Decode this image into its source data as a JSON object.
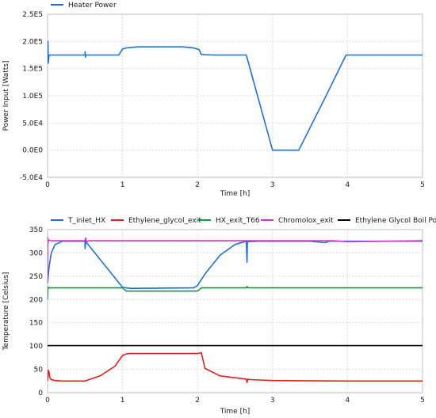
{
  "chart_data": [
    {
      "type": "line",
      "title": "",
      "xlabel": "Time [h]",
      "ylabel": "Power Input [Watts]",
      "xlim": [
        0,
        5
      ],
      "ylim": [
        -50000,
        250000
      ],
      "x_ticks": [
        0,
        1,
        2,
        3,
        4,
        5
      ],
      "x_tick_labels": [
        "0",
        "1",
        "2",
        "3",
        "4",
        "5"
      ],
      "y_ticks": [
        -50000,
        0,
        50000,
        100000,
        150000,
        200000,
        250000
      ],
      "y_tick_labels": [
        "-5.0E4",
        "0.0E0",
        "5.0E4",
        "1.0E5",
        "1.5E5",
        "2.0E5",
        "2.5E5"
      ],
      "grid": true,
      "legend_position": "top-left",
      "series": [
        {
          "name": "Heater Power",
          "color": "#1f6fd6",
          "x": [
            0,
            0.005,
            0.01,
            0.02,
            0.5,
            0.5,
            0.505,
            0.51,
            0.95,
            1.0,
            1.05,
            1.2,
            1.8,
            1.95,
            2.02,
            2.05,
            2.2,
            2.65,
            3.0,
            3.35,
            3.7,
            3.98,
            4.0,
            5.0
          ],
          "y": [
            175000,
            200000,
            160000,
            175000,
            175000,
            181000,
            171000,
            175000,
            175000,
            186000,
            188000,
            190000,
            190000,
            188000,
            185000,
            176000,
            175000,
            175000,
            0,
            0,
            96000,
            175000,
            175000,
            175000
          ]
        }
      ]
    },
    {
      "type": "line",
      "title": "",
      "xlabel": "Time [h]",
      "ylabel": "Temperature [Celsius]",
      "xlim": [
        0,
        5
      ],
      "ylim": [
        0,
        350
      ],
      "x_ticks": [
        0,
        1,
        2,
        3,
        4,
        5
      ],
      "x_tick_labels": [
        "0",
        "1",
        "2",
        "3",
        "4",
        "5"
      ],
      "y_ticks": [
        0,
        50,
        100,
        150,
        200,
        250,
        300,
        350
      ],
      "y_tick_labels": [
        "0",
        "50",
        "100",
        "150",
        "200",
        "250",
        "300",
        "350"
      ],
      "grid": true,
      "legend_position": "top",
      "series": [
        {
          "name": "T_inlet_HX",
          "color": "#1f6fd6",
          "x": [
            0,
            0.02,
            0.05,
            0.1,
            0.2,
            0.5,
            0.5,
            0.51,
            0.52,
            1.0,
            1.1,
            1.2,
            1.95,
            2.0,
            2.1,
            2.3,
            2.5,
            2.65,
            2.66,
            2.665,
            2.67,
            2.8,
            3.5,
            3.7,
            3.75,
            5.0
          ],
          "y": [
            235,
            270,
            300,
            318,
            325,
            325,
            309,
            325,
            322,
            226,
            224,
            224,
            225,
            230,
            255,
            295,
            318,
            325,
            280,
            325,
            324,
            325,
            325,
            322,
            325,
            325
          ]
        },
        {
          "name": "Ethylene_glycol_exit",
          "color": "#e0201b",
          "x": [
            0,
            0.01,
            0.02,
            0.03,
            0.05,
            0.1,
            0.2,
            0.5,
            0.7,
            0.9,
            1.0,
            1.05,
            1.1,
            2.0,
            2.05,
            2.1,
            2.3,
            2.65,
            2.66,
            2.67,
            2.7,
            3.0,
            4.0,
            5.0
          ],
          "y": [
            25,
            48,
            44,
            33,
            28,
            26,
            25,
            25,
            36,
            57,
            80,
            83,
            84,
            84,
            86,
            52,
            36,
            29,
            22,
            29,
            28,
            26,
            25,
            25
          ]
        },
        {
          "name": "HX_exit_T66",
          "color": "#1a9641",
          "x": [
            0,
            0.005,
            0.01,
            1.0,
            1.05,
            2.0,
            2.05,
            2.65,
            2.66,
            2.67,
            5.0
          ],
          "y": [
            200,
            227,
            225,
            225,
            218,
            218,
            225,
            225,
            228,
            225,
            225
          ]
        },
        {
          "name": "Chromolox_exit",
          "color": "#c838c8",
          "x": [
            0,
            0.003,
            0.006,
            0.01,
            0.02,
            0.05,
            0.5,
            0.51,
            0.52,
            0.55,
            3.8,
            4.0,
            5.0
          ],
          "y": [
            240,
            333,
            320,
            328,
            327,
            326,
            326,
            332,
            324,
            326,
            326,
            324,
            326
          ]
        },
        {
          "name": "Ethylene Glycol Boil Point",
          "color": "#000000",
          "x": [
            0,
            5
          ],
          "y": [
            101,
            101
          ]
        }
      ]
    }
  ]
}
